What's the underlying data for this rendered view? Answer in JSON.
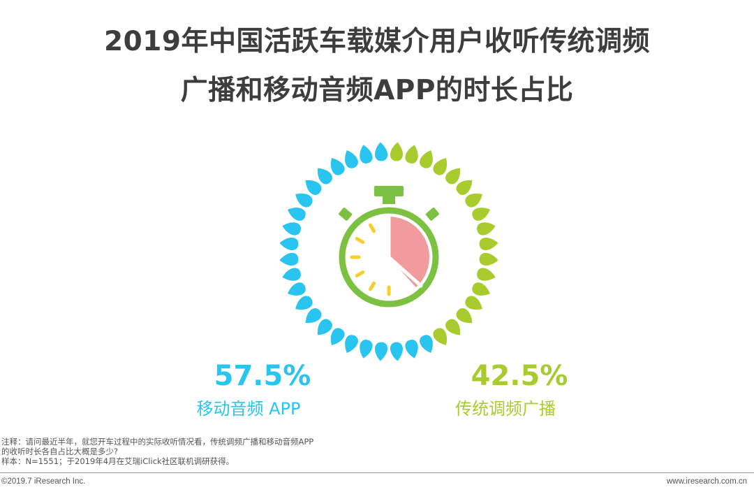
{
  "title_line1": "2019年中国活跃车载媒介用户收听传统调频",
  "title_line2": "广播和移动音频APP的时长占比",
  "chart_data": {
    "type": "pie",
    "title": "2019年中国活跃车载媒介用户收听传统调频广播和移动音频APP的时长占比",
    "slices": [
      {
        "label": "移动音频 APP",
        "value": 57.5,
        "display": "57.5%",
        "color": "#29c4f0"
      },
      {
        "label": "传统调频广播",
        "value": 42.5,
        "display": "42.5%",
        "color": "#a8cc2e"
      }
    ]
  },
  "stopwatch": {
    "frame_color": "#7cc142",
    "tick_color": "#f7cf2b",
    "wedge_color": "#f29b9e",
    "hand_color": "#ffffff"
  },
  "notes": {
    "line1": "注释：请问最近半年，就您开车过程中的实际收听情况看，传统调频广播和移动音频APP",
    "line2": "的收听时长各自占比大概是多少?",
    "line3": "样本：N=1551；于2019年4月在艾瑞iClick社区联机调研获得。"
  },
  "footer": {
    "copyright": "©2019.7 iResearch Inc.",
    "website": "www.iresearch.com.cn"
  }
}
